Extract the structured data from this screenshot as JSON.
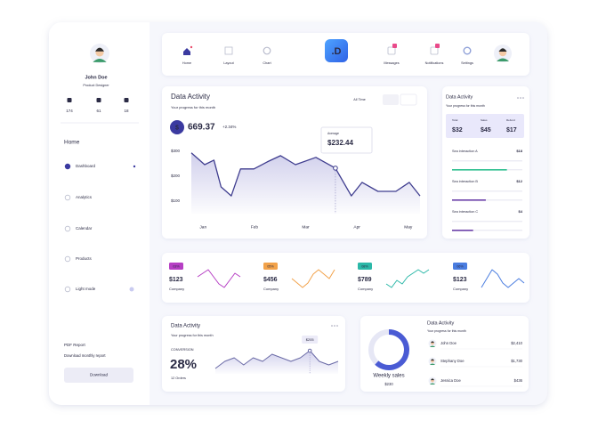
{
  "sidebar": {
    "user": {
      "name": "John Doe",
      "role": "Product Designer"
    },
    "stats": [
      174,
      61,
      18
    ],
    "section": "Home",
    "nav": [
      "Dashboard",
      "Analytics",
      "Calendar",
      "Products",
      "Light mode"
    ],
    "report": {
      "title": "PDF Report",
      "text": "Download monthly report",
      "button": "Download"
    }
  },
  "topnav": {
    "left_items": [
      "Home",
      "Layout",
      "Chart"
    ],
    "logo": ".D",
    "right_items": [
      "Messages",
      "Notifications",
      "Settings"
    ]
  },
  "activity": {
    "type": "line",
    "title": "Data Activity",
    "subtitle": "Your progress for this month",
    "filter": "All Time",
    "total_icon": "$",
    "total": "669.37",
    "change": "+2.34%",
    "tooltip": {
      "label": "Average",
      "value": "$232.44"
    },
    "color": "#3f3d8f",
    "x": [
      -0.23,
      0.03,
      0.21,
      0.35,
      0.55,
      0.73,
      0.99,
      1.25,
      1.51,
      1.8,
      2.2,
      2.58,
      2.89,
      3.1,
      3.41,
      3.76,
      4.02,
      4.23
    ],
    "values": [
      293,
      246,
      264,
      157,
      121,
      229,
      229,
      257,
      282,
      246,
      275,
      232,
      121,
      175,
      139,
      139,
      175,
      121
    ],
    "highlight": 11,
    "xlim": [
      -0.23,
      4.23
    ],
    "xticks": [
      {
        "value": 0,
        "label": "Jan"
      },
      {
        "value": 1,
        "label": "Feb"
      },
      {
        "value": 2,
        "label": "Mar"
      },
      {
        "value": 3,
        "label": "Apr"
      },
      {
        "value": 4,
        "label": "May"
      }
    ],
    "ylim": [
      50,
      335
    ],
    "yticks": [
      {
        "value": 300,
        "label": "$300"
      },
      {
        "value": 200,
        "label": "$200"
      },
      {
        "value": 100,
        "label": "$100"
      }
    ],
    "grid": false
  },
  "summary": {
    "title": "Data Activity",
    "subtitle": "Your progress for this month",
    "stats": [
      {
        "label": "Total",
        "value": "$32"
      },
      {
        "label": "Sales",
        "value": "$45"
      },
      {
        "label": "Refund",
        "value": "$17"
      }
    ],
    "items": [
      {
        "name": "Sea interaction A",
        "value": "$18",
        "progress": 0.78,
        "color": "#2fbf8f"
      },
      {
        "name": "Sea interaction B",
        "value": "$12",
        "progress": 0.48,
        "color": "#6b3fa8"
      },
      {
        "name": "Sea interaction C",
        "value": "$4",
        "progress": 0.3,
        "color": "#6b3fa8"
      }
    ]
  },
  "kpis": [
    {
      "badge": "03%",
      "color": "#b63fc4",
      "value": "$123",
      "label": "Company",
      "values": [
        5,
        6,
        7,
        5,
        3,
        2,
        4,
        6,
        5
      ]
    },
    {
      "badge": "05%",
      "color": "#f2a24a",
      "value": "$456",
      "label": "Company",
      "values": [
        4,
        3,
        2,
        3,
        5,
        6,
        5,
        4,
        6
      ]
    },
    {
      "badge": "08%",
      "color": "#2bb8a8",
      "value": "$789",
      "label": "Company",
      "values": [
        3,
        2,
        4,
        3,
        5,
        6,
        7,
        6,
        7
      ]
    },
    {
      "badge": "06%",
      "color": "#4a7de0",
      "value": "$123",
      "label": "Company",
      "values": [
        3,
        5,
        7,
        6,
        4,
        3,
        4,
        5,
        4
      ]
    }
  ],
  "conversion": {
    "title": "Data Activity",
    "subtitle": "Your progress for this month",
    "label": "CONVERSION",
    "value": "28%",
    "sub": "12 Orders",
    "tooltip": "$205",
    "highlight": 10,
    "color": "#6a6aa6",
    "values": [
      3,
      5,
      6,
      4,
      6,
      5,
      7,
      6,
      5,
      6,
      8,
      5,
      4,
      5
    ]
  },
  "sales": {
    "title": "Data Activity",
    "subtitle": "Your progress for this month",
    "donut": 62,
    "donut_label": "Weekly sales",
    "donut_value": "$230",
    "people": [
      {
        "name": "John Doe",
        "value": "$2,410"
      },
      {
        "name": "Stephany Doe",
        "value": "$1,730"
      },
      {
        "name": "Jessica Doe",
        "value": "$436"
      }
    ]
  }
}
